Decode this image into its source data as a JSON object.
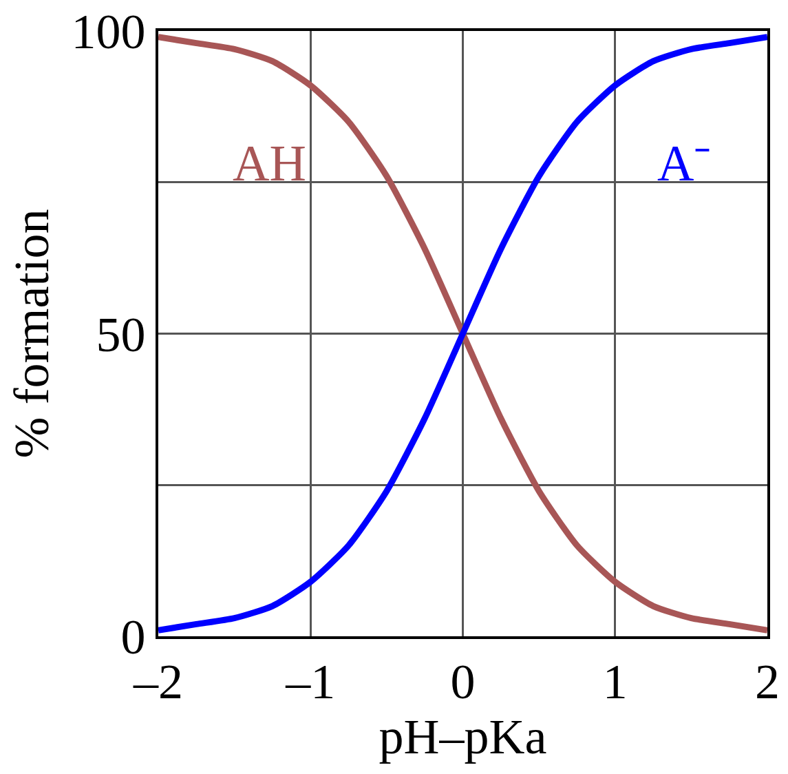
{
  "chart_data": {
    "type": "line",
    "xlabel": "pH–pKa",
    "ylabel": "% formation",
    "x": [
      -2,
      -1.75,
      -1.5,
      -1.25,
      -1,
      -0.75,
      -0.5,
      -0.25,
      0,
      0.25,
      0.5,
      0.75,
      1,
      1.25,
      1.5,
      1.75,
      2
    ],
    "series": [
      {
        "name": "AH",
        "color": "#a85656",
        "values": [
          99,
          98,
          97,
          95,
          91,
          85,
          76,
          64,
          50,
          36,
          24,
          15,
          9,
          5,
          3,
          2,
          1
        ]
      },
      {
        "name": "A⁻",
        "color": "#0000ff",
        "values": [
          1,
          2,
          3,
          5,
          9,
          15,
          24,
          36,
          50,
          64,
          76,
          85,
          91,
          95,
          97,
          98,
          99
        ]
      }
    ],
    "xlim": [
      -2,
      2
    ],
    "xticks": [
      {
        "value": -2,
        "label": "–2"
      },
      {
        "value": -1,
        "label": "–1"
      },
      0,
      1,
      2
    ],
    "ylim": [
      0,
      100
    ],
    "yticks": [
      0,
      {
        "value": 25,
        "label": null
      },
      50,
      {
        "value": 75,
        "label": null
      },
      100
    ],
    "grid": true,
    "legend": false,
    "marker": "none",
    "line_style": "solid"
  }
}
